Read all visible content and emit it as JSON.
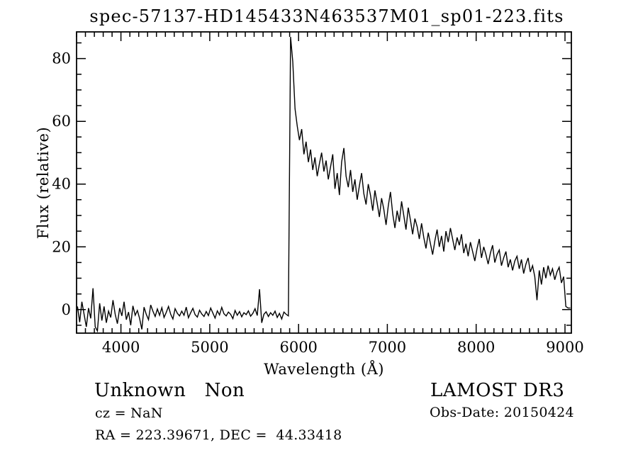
{
  "title": "spec-57137-HD145433N463537M01_sp01-223.fits",
  "chart_data": {
    "type": "line",
    "title": "spec-57137-HD145433N463537M01_sp01-223.fits",
    "xlabel": "Wavelength (Å)",
    "ylabel": "Flux (relative)",
    "xlim": [
      3500,
      9072
    ],
    "ylim": [
      -7.5,
      88.5
    ],
    "x_ticks_major": [
      4000,
      5000,
      6000,
      7000,
      8000,
      9000
    ],
    "x_tick_labels": [
      "4000",
      "5000",
      "6000",
      "7000",
      "8000",
      "9000"
    ],
    "x_minor_step": 100,
    "y_ticks_major": [
      0,
      20,
      40,
      60,
      80
    ],
    "y_tick_labels": [
      "0",
      "20",
      "40",
      "60",
      "80"
    ],
    "y_minor_step": 5,
    "grid": false,
    "legend": "none",
    "line_color": "#000000",
    "background_color": "#ffffff",
    "series": [
      {
        "name": "spectrum",
        "x_start": 3510,
        "x_step": 25,
        "flux": [
          1.0,
          -4.0,
          2.5,
          -1.5,
          -5.5,
          0.5,
          -2.8,
          6.8,
          -5.5,
          -6.8,
          2.0,
          -3.5,
          1.0,
          -4.2,
          -0.5,
          -2.5,
          3.0,
          -1.5,
          -4.5,
          0.5,
          -2.0,
          2.5,
          -3.2,
          -0.8,
          -5.0,
          1.2,
          -1.8,
          -0.3,
          -2.8,
          -6.3,
          0.8,
          -1.5,
          -3.2,
          1.5,
          -0.5,
          -2.2,
          0.2,
          -1.8,
          0.6,
          -2.5,
          -0.9,
          1.0,
          -1.5,
          -3.0,
          0.3,
          -1.2,
          -2.0,
          -0.5,
          -1.8,
          0.8,
          -2.6,
          -1.0,
          0.4,
          -1.6,
          -2.4,
          -0.2,
          -1.4,
          -2.2,
          -0.6,
          -1.9,
          0.5,
          -1.1,
          -2.7,
          -0.4,
          -1.7,
          0.7,
          -1.3,
          -2.0,
          -0.8,
          -1.5,
          -2.9,
          -0.3,
          -1.8,
          -0.6,
          -2.3,
          -1.0,
          -1.6,
          -0.4,
          -2.1,
          -1.2,
          0.3,
          -1.9,
          6.5,
          -4.2,
          -1.5,
          -0.7,
          -2.2,
          -1.0,
          -1.8,
          -0.5,
          -2.5,
          -1.2,
          -3.0,
          -0.8,
          -1.5,
          -2.0,
          86.9,
          79.0,
          64.0,
          58.5,
          54.0,
          57.5,
          49.5,
          53.5,
          47.0,
          51.0,
          44.5,
          48.5,
          42.5,
          46.5,
          50.0,
          44.0,
          47.5,
          41.5,
          45.5,
          49.5,
          38.5,
          43.5,
          36.5,
          47.0,
          51.5,
          42.5,
          39.0,
          44.5,
          37.5,
          41.5,
          35.0,
          39.5,
          43.5,
          37.0,
          33.5,
          40.0,
          36.5,
          31.5,
          38.0,
          34.0,
          29.5,
          35.5,
          32.0,
          27.0,
          33.0,
          37.5,
          30.5,
          26.0,
          31.5,
          28.0,
          34.5,
          30.0,
          25.5,
          32.5,
          28.5,
          24.0,
          29.0,
          26.5,
          22.5,
          27.5,
          23.0,
          19.5,
          24.5,
          21.0,
          17.5,
          22.0,
          25.5,
          20.0,
          23.5,
          18.5,
          25.0,
          21.5,
          26.0,
          22.5,
          19.0,
          23.0,
          20.5,
          24.0,
          18.0,
          21.0,
          17.0,
          21.5,
          18.5,
          15.5,
          19.5,
          22.5,
          16.5,
          20.0,
          17.5,
          14.5,
          18.0,
          20.5,
          15.0,
          17.5,
          19.0,
          14.0,
          16.5,
          18.5,
          13.5,
          16.0,
          12.5,
          15.5,
          17.0,
          13.0,
          16.0,
          11.5,
          14.5,
          16.5,
          12.0,
          14.0,
          10.5,
          3.0,
          12.5,
          8.0,
          13.5,
          10.0,
          14.0,
          11.0,
          13.0,
          9.5,
          12.0,
          13.5,
          8.5,
          10.5,
          1.0,
          0.5,
          0.5
        ]
      }
    ]
  },
  "annotations": {
    "class_label": "Unknown   Non",
    "cz": "cz = NaN",
    "ra_dec": "RA = 223.39671, DEC =  44.33418",
    "survey": "LAMOST DR3",
    "obs_date": "Obs-Date: 20150424"
  }
}
